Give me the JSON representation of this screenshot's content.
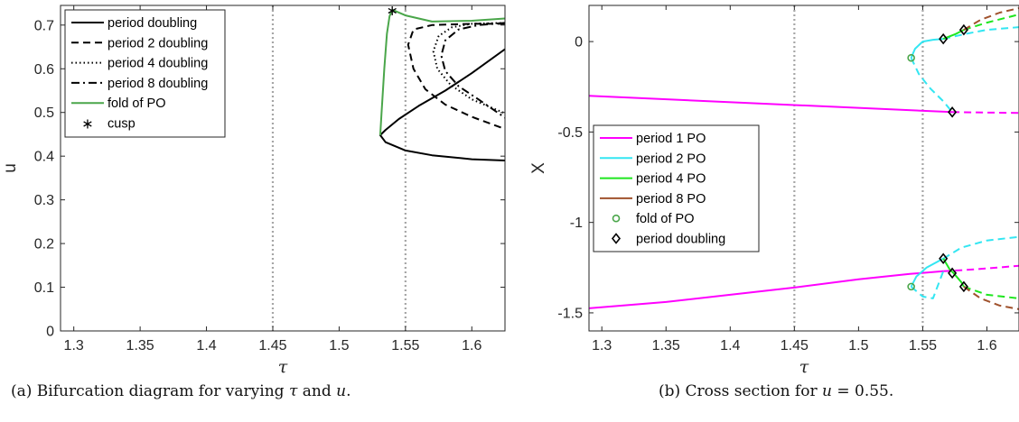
{
  "captions": {
    "a_prefix": "(a) Bifurcation diagram for varying ",
    "a_tau": "τ",
    "a_mid": " and ",
    "a_u": "u",
    "a_end": ".",
    "b_prefix": "(b) Cross section for ",
    "b_u": "u",
    "b_rest": " = 0.55."
  },
  "colors": {
    "black": "#000000",
    "fold": "#4aa64a",
    "grid_dotted": "#a6a6a6",
    "period1": "#ff00ff",
    "period2": "#33e6f2",
    "period4": "#1ee61e",
    "period8": "#a0522d"
  },
  "chart_data": [
    {
      "type": "line",
      "id": "a",
      "xlabel": "τ",
      "ylabel": "u",
      "xlim": [
        1.29,
        1.625
      ],
      "ylim": [
        0,
        0.745
      ],
      "xticks": [
        1.3,
        1.35,
        1.4,
        1.45,
        1.5,
        1.55,
        1.6
      ],
      "xtick_labels": [
        "1.3",
        "1.35",
        "1.4",
        "1.45",
        "1.5",
        "1.55",
        "1.6"
      ],
      "yticks": [
        0,
        0.1,
        0.2,
        0.3,
        0.4,
        0.5,
        0.6,
        0.7
      ],
      "ytick_labels": [
        "0",
        "0.1",
        "0.2",
        "0.3",
        "0.4",
        "0.5",
        "0.6",
        "0.7"
      ],
      "vlines": [
        1.45,
        1.55
      ],
      "legend_position": "top-left",
      "legend": [
        "period doubling",
        "period 2 doubling",
        "period 4 doubling",
        "period 8 doubling",
        "fold of PO",
        "cusp"
      ],
      "series": [
        {
          "name": "period doubling",
          "style": "solid",
          "color": "#000000",
          "points": [
            [
              1.625,
              0.645
            ],
            [
              1.6,
              0.59
            ],
            [
              1.58,
              0.55
            ],
            [
              1.56,
              0.515
            ],
            [
              1.545,
              0.485
            ],
            [
              1.535,
              0.46
            ],
            [
              1.531,
              0.448
            ],
            [
              1.535,
              0.432
            ],
            [
              1.55,
              0.413
            ],
            [
              1.57,
              0.402
            ],
            [
              1.6,
              0.393
            ],
            [
              1.625,
              0.39
            ]
          ]
        },
        {
          "name": "period 2 doubling",
          "style": "dashed",
          "color": "#000000",
          "points": [
            [
              1.625,
              0.703
            ],
            [
              1.6,
              0.703
            ],
            [
              1.57,
              0.7
            ],
            [
              1.556,
              0.69
            ],
            [
              1.552,
              0.655
            ],
            [
              1.556,
              0.6
            ],
            [
              1.565,
              0.553
            ],
            [
              1.58,
              0.518
            ],
            [
              1.6,
              0.49
            ],
            [
              1.625,
              0.462
            ]
          ]
        },
        {
          "name": "period 4 doubling",
          "style": "dotted",
          "color": "#000000",
          "points": [
            [
              1.625,
              0.705
            ],
            [
              1.6,
              0.703
            ],
            [
              1.585,
              0.695
            ],
            [
              1.575,
              0.675
            ],
            [
              1.571,
              0.64
            ],
            [
              1.574,
              0.6
            ],
            [
              1.584,
              0.563
            ],
            [
              1.6,
              0.53
            ],
            [
              1.625,
              0.498
            ]
          ]
        },
        {
          "name": "period 8 doubling",
          "style": "dashdot",
          "color": "#000000",
          "points": [
            [
              1.625,
              0.705
            ],
            [
              1.605,
              0.7
            ],
            [
              1.59,
              0.69
            ],
            [
              1.58,
              0.665
            ],
            [
              1.577,
              0.63
            ],
            [
              1.58,
              0.595
            ],
            [
              1.59,
              0.56
            ],
            [
              1.605,
              0.53
            ],
            [
              1.625,
              0.488
            ]
          ]
        },
        {
          "name": "fold of PO",
          "style": "solid",
          "color": "#4aa64a",
          "points": [
            [
              1.531,
              0.448
            ],
            [
              1.532,
              0.5
            ],
            [
              1.534,
              0.6
            ],
            [
              1.536,
              0.68
            ],
            [
              1.538,
              0.72
            ],
            [
              1.54,
              0.735
            ],
            [
              1.55,
              0.722
            ],
            [
              1.57,
              0.708
            ],
            [
              1.6,
              0.71
            ],
            [
              1.625,
              0.715
            ]
          ]
        },
        {
          "name": "cusp",
          "style": "marker",
          "color": "#000000",
          "points": [
            [
              1.54,
              0.735
            ]
          ]
        }
      ]
    },
    {
      "type": "line",
      "id": "b",
      "xlabel": "τ",
      "ylabel": "X",
      "xlim": [
        1.29,
        1.625
      ],
      "ylim": [
        -1.6,
        0.2
      ],
      "xticks": [
        1.3,
        1.35,
        1.4,
        1.45,
        1.5,
        1.55,
        1.6
      ],
      "xtick_labels": [
        "1.3",
        "1.35",
        "1.4",
        "1.45",
        "1.5",
        "1.55",
        "1.6"
      ],
      "yticks": [
        -1.5,
        -1,
        -0.5,
        0
      ],
      "ytick_labels": [
        "-1.5",
        "-1",
        "-0.5",
        "0"
      ],
      "vlines": [
        1.45,
        1.55
      ],
      "legend_position": "middle-left",
      "legend": [
        "period 1 PO",
        "period 2 PO",
        "period 4 PO",
        "period 8 PO",
        "fold of PO",
        "period doubling"
      ],
      "series": [
        {
          "name": "period 1 PO",
          "color": "#ff00ff",
          "segments": [
            {
              "style": "solid",
              "points": [
                [
                  1.29,
                  -0.3
                ],
                [
                  1.573,
                  -0.39
                ]
              ]
            },
            {
              "style": "dashed",
              "points": [
                [
                  1.573,
                  -0.39
                ],
                [
                  1.625,
                  -0.395
                ]
              ]
            },
            {
              "style": "solid",
              "points": [
                [
                  1.29,
                  -1.475
                ],
                [
                  1.35,
                  -1.44
                ],
                [
                  1.4,
                  -1.4
                ],
                [
                  1.45,
                  -1.36
                ],
                [
                  1.5,
                  -1.315
                ],
                [
                  1.54,
                  -1.285
                ],
                [
                  1.566,
                  -1.27
                ]
              ]
            },
            {
              "style": "dashed",
              "points": [
                [
                  1.566,
                  -1.27
                ],
                [
                  1.59,
                  -1.26
                ],
                [
                  1.625,
                  -1.24
                ]
              ]
            }
          ]
        },
        {
          "name": "period 2 PO",
          "color": "#33e6f2",
          "segments": [
            {
              "style": "solid",
              "points": [
                [
                  1.541,
                  -0.09
                ],
                [
                  1.544,
                  -0.04
                ],
                [
                  1.55,
                  0.0
                ],
                [
                  1.558,
                  0.01
                ],
                [
                  1.566,
                  0.015
                ]
              ]
            },
            {
              "style": "dashed",
              "points": [
                [
                  1.541,
                  -0.09
                ],
                [
                  1.547,
                  -0.18
                ],
                [
                  1.556,
                  -0.26
                ],
                [
                  1.566,
                  -0.33
                ],
                [
                  1.573,
                  -0.39
                ]
              ]
            },
            {
              "style": "dashed",
              "points": [
                [
                  1.566,
                  0.015
                ],
                [
                  1.585,
                  0.045
                ],
                [
                  1.6,
                  0.065
                ],
                [
                  1.625,
                  0.08
                ]
              ]
            },
            {
              "style": "solid",
              "points": [
                [
                  1.541,
                  -1.355
                ],
                [
                  1.545,
                  -1.3
                ],
                [
                  1.553,
                  -1.25
                ],
                [
                  1.566,
                  -1.2
                ]
              ]
            },
            {
              "style": "dashed",
              "points": [
                [
                  1.541,
                  -1.355
                ],
                [
                  1.55,
                  -1.41
                ],
                [
                  1.558,
                  -1.42
                ],
                [
                  1.566,
                  -1.27
                ]
              ]
            },
            {
              "style": "dashed",
              "points": [
                [
                  1.566,
                  -1.2
                ],
                [
                  1.58,
                  -1.14
                ],
                [
                  1.6,
                  -1.1
                ],
                [
                  1.625,
                  -1.08
                ]
              ]
            }
          ]
        },
        {
          "name": "period 4 PO",
          "color": "#1ee61e",
          "segments": [
            {
              "style": "solid",
              "points": [
                [
                  1.566,
                  0.015
                ],
                [
                  1.575,
                  0.04
                ],
                [
                  1.582,
                  0.065
                ]
              ]
            },
            {
              "style": "dashed",
              "points": [
                [
                  1.582,
                  0.065
                ],
                [
                  1.6,
                  0.105
                ],
                [
                  1.625,
                  0.15
                ]
              ]
            },
            {
              "style": "solid",
              "points": [
                [
                  1.566,
                  -1.2
                ],
                [
                  1.571,
                  -1.26
                ],
                [
                  1.574,
                  -1.28
                ],
                [
                  1.58,
                  -1.33
                ],
                [
                  1.582,
                  -1.355
                ]
              ]
            },
            {
              "style": "dashed",
              "points": [
                [
                  1.582,
                  -1.355
                ],
                [
                  1.6,
                  -1.4
                ],
                [
                  1.625,
                  -1.42
                ]
              ]
            }
          ]
        },
        {
          "name": "period 8 PO",
          "color": "#a0522d",
          "segments": [
            {
              "style": "dashed",
              "points": [
                [
                  1.582,
                  0.065
                ],
                [
                  1.595,
                  0.12
                ],
                [
                  1.61,
                  0.16
                ],
                [
                  1.625,
                  0.185
                ]
              ]
            },
            {
              "style": "dashed",
              "points": [
                [
                  1.582,
                  -1.355
                ],
                [
                  1.595,
                  -1.42
                ],
                [
                  1.61,
                  -1.46
                ],
                [
                  1.625,
                  -1.48
                ]
              ]
            }
          ]
        },
        {
          "name": "fold of PO",
          "style": "marker-circle",
          "color": "#4aa64a",
          "points": [
            [
              1.541,
              -0.09
            ],
            [
              1.541,
              -1.355
            ]
          ]
        },
        {
          "name": "period doubling",
          "style": "marker-diamond",
          "color": "#000000",
          "points": [
            [
              1.566,
              0.015
            ],
            [
              1.582,
              0.065
            ],
            [
              1.573,
              -0.39
            ],
            [
              1.566,
              -1.2
            ],
            [
              1.573,
              -1.28
            ],
            [
              1.582,
              -1.355
            ]
          ]
        }
      ]
    }
  ]
}
